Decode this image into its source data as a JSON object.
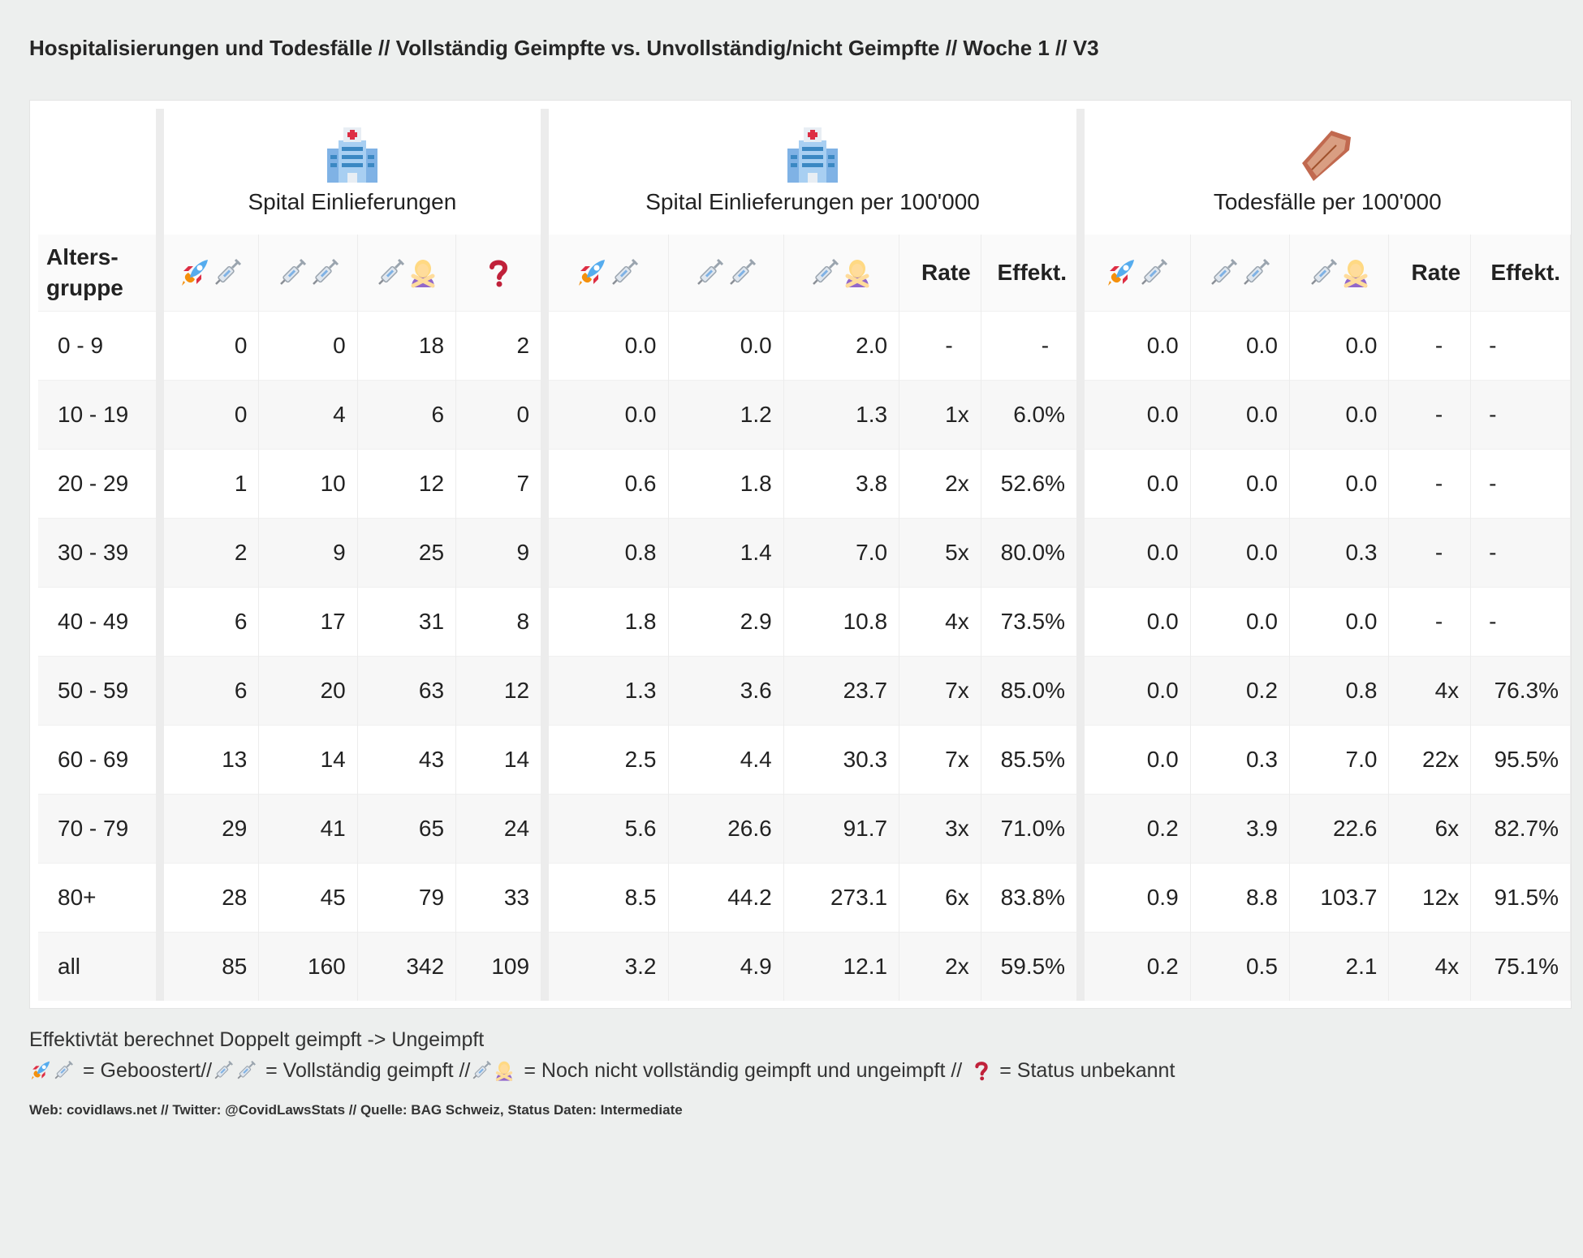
{
  "title": "Hospitalisierungen und Todesfälle // Vollständig Geimpfte vs. Unvollständig/nicht Geimpfte // Woche 1 // V3",
  "groups": {
    "hosp": {
      "label": "Spital Einlieferungen",
      "icon": "hospital-icon"
    },
    "hosp_rate": {
      "label": "Spital Einlieferungen per 100'000",
      "icon": "hospital-icon"
    },
    "deaths": {
      "label": "Todesfälle per 100'000",
      "icon": "coffin-icon"
    }
  },
  "headers": {
    "age": "Alters-gruppe",
    "age_line1": "Alters-",
    "age_line2": "gruppe",
    "rate": "Rate",
    "effekt": "Effekt.",
    "unknown": "?"
  },
  "rows": [
    {
      "age": "0 - 9",
      "h": [
        "0",
        "0",
        "18",
        "2"
      ],
      "hr": [
        "0.0",
        "0.0",
        "2.0",
        "-",
        "-"
      ],
      "d": [
        "0.0",
        "0.0",
        "0.0",
        "-",
        "-"
      ]
    },
    {
      "age": "10 - 19",
      "h": [
        "0",
        "4",
        "6",
        "0"
      ],
      "hr": [
        "0.0",
        "1.2",
        "1.3",
        "1x",
        "6.0%"
      ],
      "d": [
        "0.0",
        "0.0",
        "0.0",
        "-",
        "-"
      ]
    },
    {
      "age": "20 - 29",
      "h": [
        "1",
        "10",
        "12",
        "7"
      ],
      "hr": [
        "0.6",
        "1.8",
        "3.8",
        "2x",
        "52.6%"
      ],
      "d": [
        "0.0",
        "0.0",
        "0.0",
        "-",
        "-"
      ]
    },
    {
      "age": "30 - 39",
      "h": [
        "2",
        "9",
        "25",
        "9"
      ],
      "hr": [
        "0.8",
        "1.4",
        "7.0",
        "5x",
        "80.0%"
      ],
      "d": [
        "0.0",
        "0.0",
        "0.3",
        "-",
        "-"
      ]
    },
    {
      "age": "40 - 49",
      "h": [
        "6",
        "17",
        "31",
        "8"
      ],
      "hr": [
        "1.8",
        "2.9",
        "10.8",
        "4x",
        "73.5%"
      ],
      "d": [
        "0.0",
        "0.0",
        "0.0",
        "-",
        "-"
      ]
    },
    {
      "age": "50 - 59",
      "h": [
        "6",
        "20",
        "63",
        "12"
      ],
      "hr": [
        "1.3",
        "3.6",
        "23.7",
        "7x",
        "85.0%"
      ],
      "d": [
        "0.0",
        "0.2",
        "0.8",
        "4x",
        "76.3%"
      ]
    },
    {
      "age": "60 - 69",
      "h": [
        "13",
        "14",
        "43",
        "14"
      ],
      "hr": [
        "2.5",
        "4.4",
        "30.3",
        "7x",
        "85.5%"
      ],
      "d": [
        "0.0",
        "0.3",
        "7.0",
        "22x",
        "95.5%"
      ]
    },
    {
      "age": "70 - 79",
      "h": [
        "29",
        "41",
        "65",
        "24"
      ],
      "hr": [
        "5.6",
        "26.6",
        "91.7",
        "3x",
        "71.0%"
      ],
      "d": [
        "0.2",
        "3.9",
        "22.6",
        "6x",
        "82.7%"
      ]
    },
    {
      "age": "80+",
      "h": [
        "28",
        "45",
        "79",
        "33"
      ],
      "hr": [
        "8.5",
        "44.2",
        "273.1",
        "6x",
        "83.8%"
      ],
      "d": [
        "0.9",
        "8.8",
        "103.7",
        "12x",
        "91.5%"
      ]
    },
    {
      "age": "all",
      "h": [
        "85",
        "160",
        "342",
        "109"
      ],
      "hr": [
        "3.2",
        "4.9",
        "12.1",
        "2x",
        "59.5%"
      ],
      "d": [
        "0.2",
        "0.5",
        "2.1",
        "4x",
        "75.1%"
      ]
    }
  ],
  "notes": {
    "line1": "Effektivtät berechnet Doppelt geimpft -> Ungeimpft",
    "boosted": "= Geboostert//",
    "full": "= Vollständig geimpft //",
    "partial": "= Noch nicht vollständig geimpft und ungeimpft //",
    "unknown": "= Status unbekannt"
  },
  "footer": "Web: covidlaws.net // Twitter: @CovidLawsStats // Quelle: BAG Schweiz, Status Daten: Intermediate",
  "colors": {
    "background": "#edefee",
    "card": "#ffffff",
    "separator": "#ececec",
    "question": "#c0213a"
  }
}
